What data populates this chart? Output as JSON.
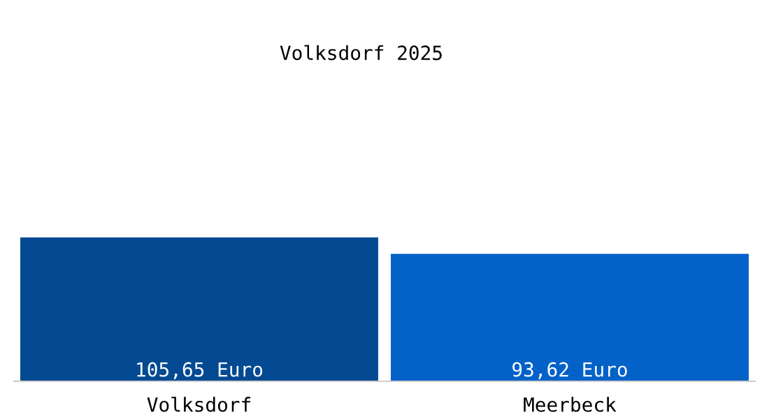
{
  "chart_data": {
    "type": "bar",
    "title": "Volksdorf 2025",
    "categories": [
      "Volksdorf",
      "Meerbeck"
    ],
    "values": [
      105.65,
      93.62
    ],
    "colors": [
      "#034a92",
      "#0362c8"
    ],
    "value_labels": [
      "105,65 Euro",
      "93,62 Euro"
    ],
    "grid": false,
    "legend": false
  }
}
